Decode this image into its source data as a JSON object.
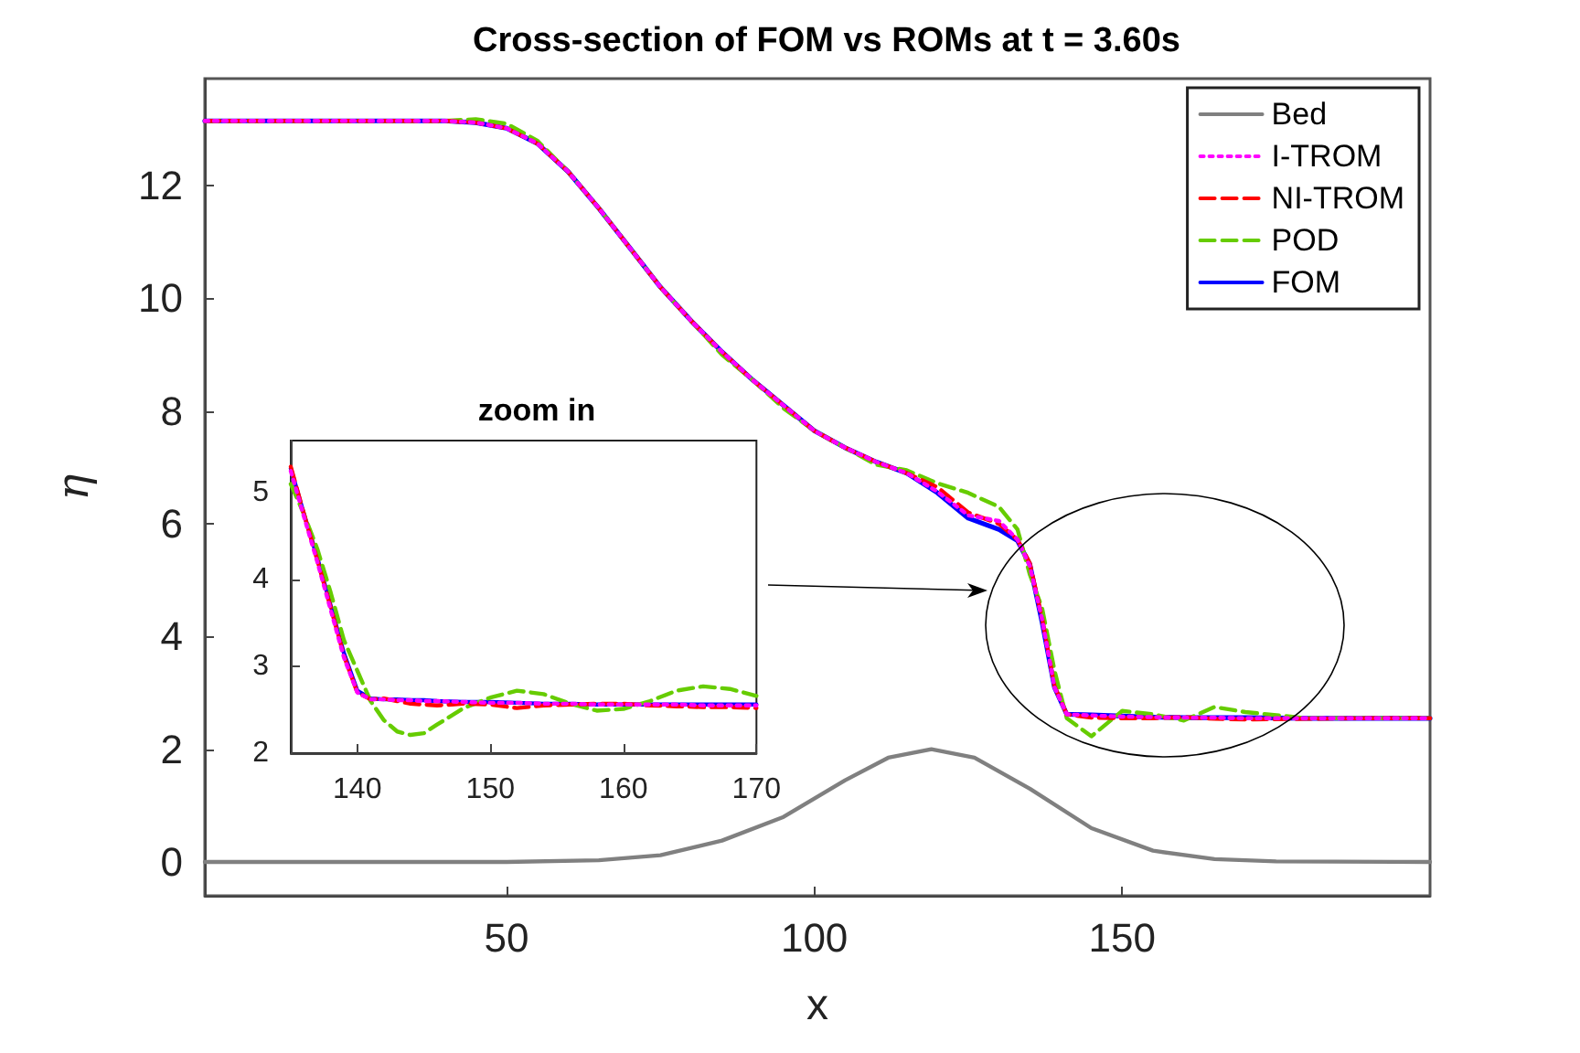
{
  "chart_data": [
    {
      "type": "line",
      "title": "Cross-section of FOM vs ROMs at t = 3.60s",
      "xlabel": "x",
      "ylabel": "η",
      "xlim": [
        1,
        200
      ],
      "xticks": [
        50,
        100,
        150
      ],
      "ylim": [
        -0.6,
        13.9
      ],
      "yticks": [
        0,
        2,
        4,
        6,
        8,
        10,
        12
      ],
      "grid": false,
      "legend": "top right",
      "marker": "none",
      "x": [
        1,
        20,
        40,
        45,
        50,
        55,
        60,
        65,
        70,
        75,
        80,
        85,
        90,
        95,
        100,
        105,
        110,
        115,
        120,
        125,
        130,
        133,
        135,
        137,
        139,
        141,
        145,
        150,
        155,
        160,
        165,
        170,
        180,
        190,
        200
      ],
      "series": [
        {
          "name": "Bed",
          "color": "#808080",
          "line_style": "solid",
          "x": [
            1,
            50,
            65,
            75,
            85,
            95,
            105,
            112,
            119,
            126,
            135,
            145,
            155,
            165,
            175,
            200
          ],
          "values": [
            0,
            0,
            0.03,
            0.12,
            0.38,
            0.8,
            1.45,
            1.85,
            2.0,
            1.85,
            1.3,
            0.6,
            0.2,
            0.05,
            0.01,
            0
          ]
        },
        {
          "name": "I-TROM",
          "color": "#ff00ff",
          "line_style": "dotted",
          "values": [
            13.15,
            13.15,
            13.15,
            13.12,
            13.02,
            12.75,
            12.25,
            11.6,
            10.9,
            10.2,
            9.6,
            9.05,
            8.55,
            8.1,
            7.65,
            7.35,
            7.1,
            6.9,
            6.57,
            6.15,
            6.05,
            5.72,
            5.25,
            4.3,
            3.1,
            2.62,
            2.6,
            2.58,
            2.57,
            2.56,
            2.56,
            2.55,
            2.55,
            2.55,
            2.55
          ]
        },
        {
          "name": "NI-TROM",
          "color": "#ff0000",
          "line_style": "dashed",
          "values": [
            13.15,
            13.15,
            13.15,
            13.12,
            13.02,
            12.75,
            12.25,
            11.6,
            10.9,
            10.2,
            9.6,
            9.05,
            8.55,
            8.1,
            7.65,
            7.35,
            7.1,
            6.9,
            6.65,
            6.2,
            6.0,
            5.72,
            5.3,
            4.32,
            3.12,
            2.62,
            2.56,
            2.55,
            2.55,
            2.57,
            2.54,
            2.53,
            2.54,
            2.55,
            2.55
          ]
        },
        {
          "name": "POD",
          "color": "#66cc00",
          "line_style": "dashed",
          "values": [
            13.15,
            13.15,
            13.15,
            13.18,
            13.1,
            12.8,
            12.25,
            11.6,
            10.9,
            10.2,
            9.6,
            9.0,
            8.55,
            8.05,
            7.65,
            7.35,
            7.05,
            6.95,
            6.72,
            6.55,
            6.3,
            5.9,
            5.1,
            4.5,
            3.4,
            2.55,
            2.23,
            2.68,
            2.62,
            2.51,
            2.75,
            2.66,
            2.55,
            2.55,
            2.55
          ]
        },
        {
          "name": "FOM",
          "color": "#0000ff",
          "line_style": "solid",
          "values": [
            13.15,
            13.15,
            13.15,
            13.12,
            13.02,
            12.75,
            12.25,
            11.6,
            10.9,
            10.2,
            9.6,
            9.05,
            8.55,
            8.1,
            7.65,
            7.35,
            7.1,
            6.9,
            6.55,
            6.1,
            5.9,
            5.7,
            5.28,
            4.25,
            3.1,
            2.62,
            2.61,
            2.59,
            2.57,
            2.56,
            2.56,
            2.56,
            2.55,
            2.55,
            2.55
          ]
        }
      ]
    },
    {
      "type": "line",
      "title": "zoom in",
      "xlim": [
        135,
        170
      ],
      "xticks": [
        140,
        150,
        160,
        170
      ],
      "ylim": [
        2,
        5.6
      ],
      "yticks": [
        2,
        3,
        4,
        5
      ],
      "grid": false,
      "legend": false,
      "marker": "none",
      "x": [
        135,
        136,
        137,
        138,
        139,
        140,
        141,
        142,
        143,
        144,
        145,
        146,
        148,
        150,
        152,
        154,
        156,
        158,
        160,
        162,
        164,
        166,
        168,
        170
      ],
      "series": [
        {
          "color": "#ff00ff",
          "line_style": "dotted",
          "values": [
            5.25,
            4.72,
            4.2,
            3.65,
            3.1,
            2.7,
            2.62,
            2.62,
            2.61,
            2.61,
            2.6,
            2.6,
            2.59,
            2.58,
            2.58,
            2.57,
            2.57,
            2.56,
            2.56,
            2.56,
            2.56,
            2.55,
            2.55,
            2.55
          ]
        },
        {
          "color": "#ff0000",
          "line_style": "dashed",
          "values": [
            5.3,
            4.75,
            4.22,
            3.68,
            3.12,
            2.7,
            2.62,
            2.63,
            2.6,
            2.57,
            2.56,
            2.55,
            2.57,
            2.56,
            2.52,
            2.55,
            2.56,
            2.57,
            2.57,
            2.55,
            2.54,
            2.53,
            2.53,
            2.52
          ]
        },
        {
          "color": "#66cc00",
          "line_style": "dashed",
          "values": [
            5.1,
            4.75,
            4.35,
            3.85,
            3.3,
            2.95,
            2.6,
            2.38,
            2.25,
            2.21,
            2.23,
            2.33,
            2.52,
            2.64,
            2.72,
            2.68,
            2.57,
            2.49,
            2.51,
            2.6,
            2.72,
            2.77,
            2.74,
            2.66
          ]
        },
        {
          "color": "#0000ff",
          "line_style": "solid",
          "values": [
            5.28,
            4.75,
            4.25,
            3.7,
            3.15,
            2.72,
            2.63,
            2.62,
            2.62,
            2.61,
            2.61,
            2.6,
            2.59,
            2.59,
            2.58,
            2.57,
            2.57,
            2.56,
            2.56,
            2.56,
            2.56,
            2.56,
            2.56,
            2.56
          ]
        }
      ]
    }
  ]
}
